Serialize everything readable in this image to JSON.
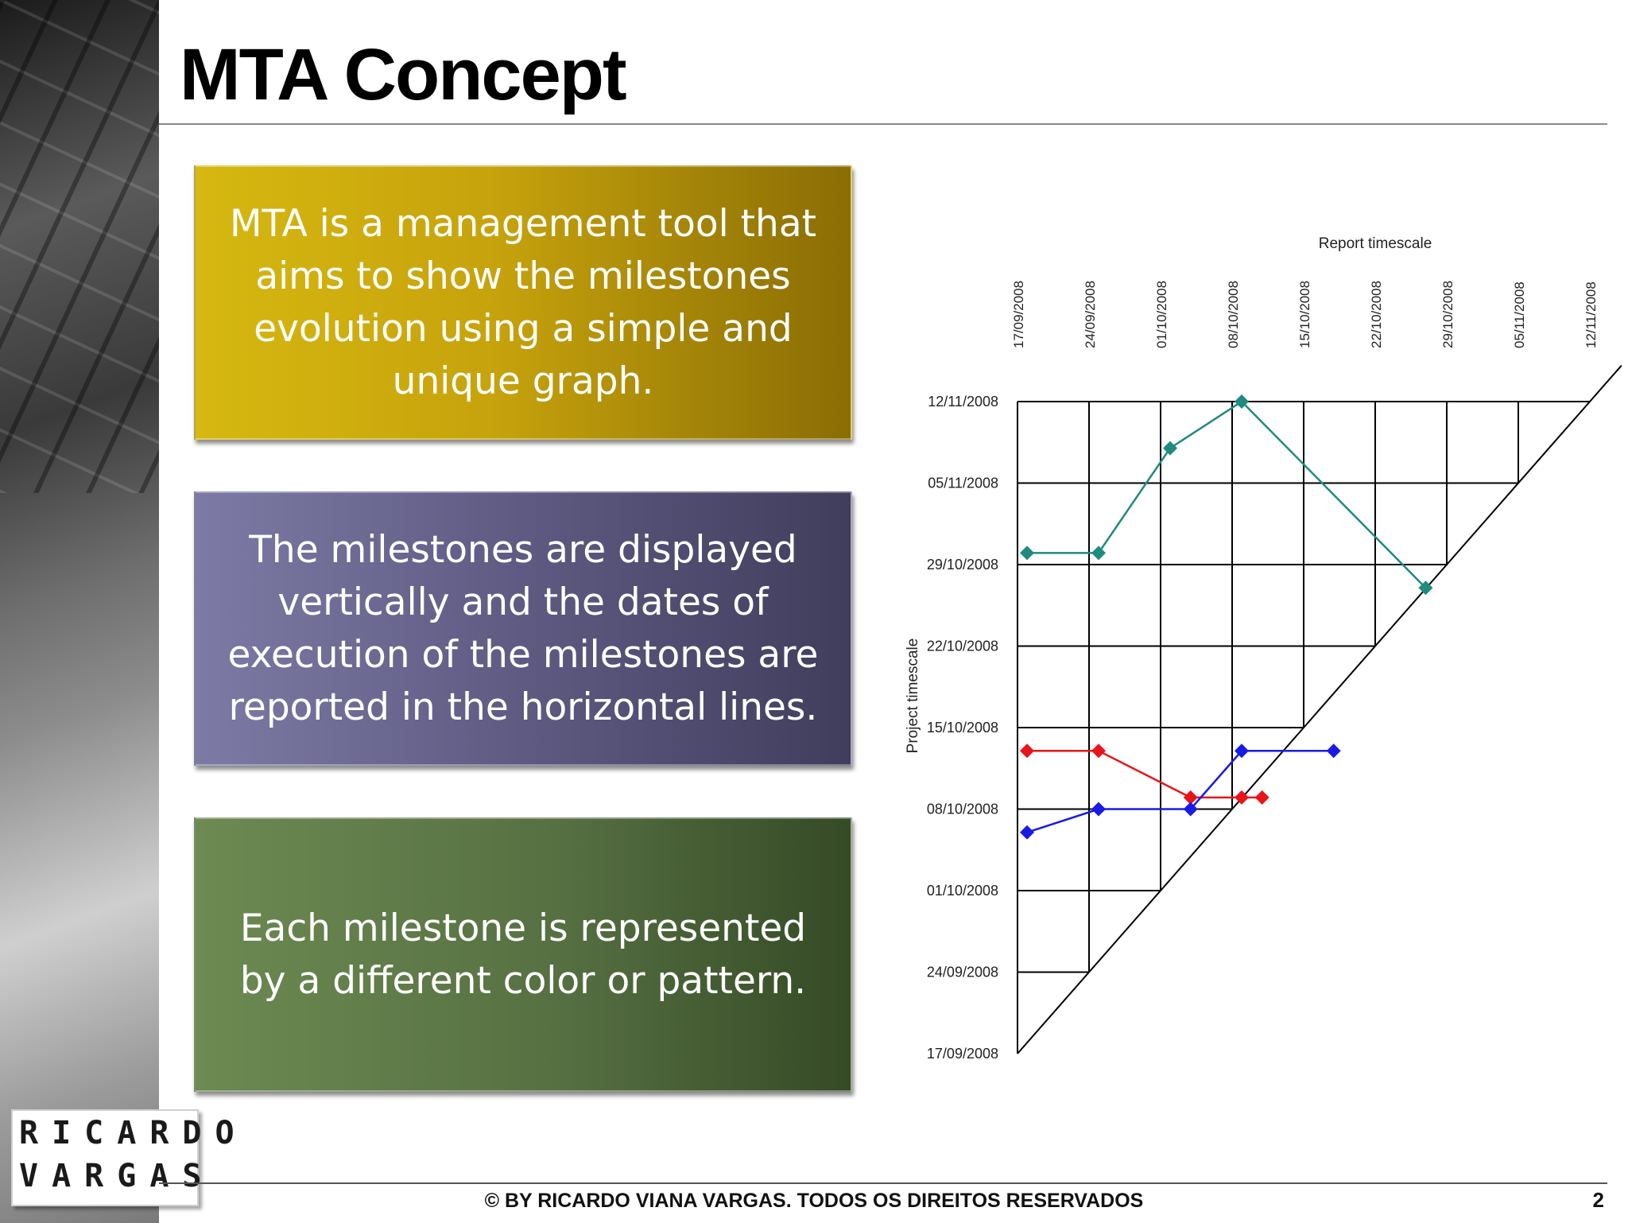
{
  "slide": {
    "title": "MTA Concept",
    "boxes": [
      {
        "lines": [
          "MTA is a management tool that",
          "aims to show the milestones",
          "evolution using a simple and",
          "unique graph."
        ]
      },
      {
        "lines": [
          "The milestones are displayed",
          "vertically and the dates of",
          "execution of the milestones are",
          "reported in the horizontal lines."
        ]
      },
      {
        "lines": [
          "Each milestone is represented",
          "by a different color or pattern."
        ]
      }
    ],
    "logo": {
      "line1": "RICARDO",
      "line2": "VARGAS"
    },
    "footer": "© BY RICARDO VIANA VARGAS. TODOS OS DIREITOS RESERVADOS",
    "page_number": "2"
  },
  "chart_data": {
    "type": "line",
    "xlabel": "Report timescale",
    "ylabel": "Project timescale",
    "x_ticks": [
      "17/09/2008",
      "24/09/2008",
      "01/10/2008",
      "08/10/2008",
      "15/10/2008",
      "22/10/2008",
      "29/10/2008",
      "05/11/2008",
      "12/11/2008"
    ],
    "y_ticks": [
      "17/09/2008",
      "24/09/2008",
      "01/10/2008",
      "08/10/2008",
      "15/10/2008",
      "22/10/2008",
      "29/10/2008",
      "05/11/2008",
      "12/11/2008"
    ],
    "grid": "triangular",
    "series": [
      {
        "color": "#1f8a80",
        "points": [
          {
            "x": "17/09/2008",
            "y": "30/10/2008"
          },
          {
            "x": "24/09/2008",
            "y": "30/10/2008"
          },
          {
            "x": "01/10/2008",
            "y": "08/11/2008"
          },
          {
            "x": "08/10/2008",
            "y": "12/11/2008"
          },
          {
            "x": "26/10/2008",
            "y": "27/10/2008"
          }
        ]
      },
      {
        "color": "#e8141a",
        "points": [
          {
            "x": "17/09/2008",
            "y": "13/10/2008"
          },
          {
            "x": "24/09/2008",
            "y": "13/10/2008"
          },
          {
            "x": "03/10/2008",
            "y": "09/10/2008"
          },
          {
            "x": "08/10/2008",
            "y": "09/10/2008"
          },
          {
            "x": "10/10/2008",
            "y": "09/10/2008"
          }
        ]
      },
      {
        "color": "#1a1ae6",
        "points": [
          {
            "x": "17/09/2008",
            "y": "06/10/2008"
          },
          {
            "x": "24/09/2008",
            "y": "08/10/2008"
          },
          {
            "x": "03/10/2008",
            "y": "08/10/2008"
          },
          {
            "x": "08/10/2008",
            "y": "13/10/2008"
          },
          {
            "x": "17/10/2008",
            "y": "13/10/2008"
          }
        ]
      }
    ]
  }
}
